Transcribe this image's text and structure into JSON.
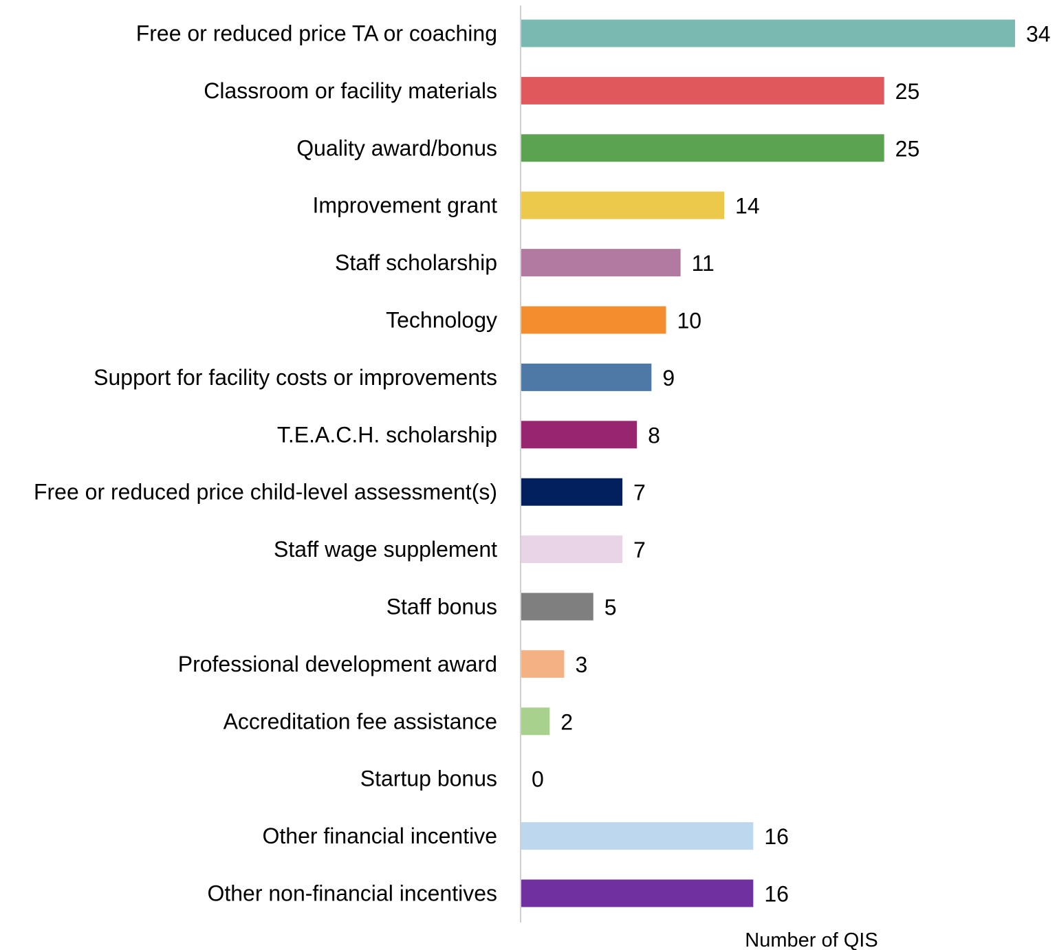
{
  "chart_data": {
    "type": "bar",
    "orientation": "horizontal",
    "title": "",
    "xlabel": "Number of QIS",
    "ylabel": "",
    "xlim": [
      0,
      34
    ],
    "grid": false,
    "legend": "none",
    "categories": [
      "Free or reduced price TA or coaching",
      "Classroom or facility materials",
      "Quality award/bonus",
      "Improvement grant",
      "Staff scholarship",
      "Technology",
      "Support for facility costs or improvements",
      "T.E.A.C.H. scholarship",
      "Free or reduced price child-level assessment(s)",
      "Staff wage supplement",
      "Staff bonus",
      "Professional development award",
      "Accreditation fee assistance",
      "Startup bonus",
      "Other financial incentive",
      "Other non-financial incentives"
    ],
    "values": [
      34,
      25,
      25,
      14,
      11,
      10,
      9,
      8,
      7,
      7,
      5,
      3,
      2,
      0,
      16,
      16
    ],
    "colors": [
      "#7ab8b2",
      "#e0585c",
      "#5ba350",
      "#ecc94b",
      "#b27aa0",
      "#f28e2e",
      "#4e79a7",
      "#972570",
      "#02205e",
      "#e8d4e6",
      "#7f7f7f",
      "#f4b183",
      "#a9d18e",
      "#ffffff",
      "#bdd7ee",
      "#7030a0"
    ],
    "axis_color": "#d0d0d0"
  }
}
